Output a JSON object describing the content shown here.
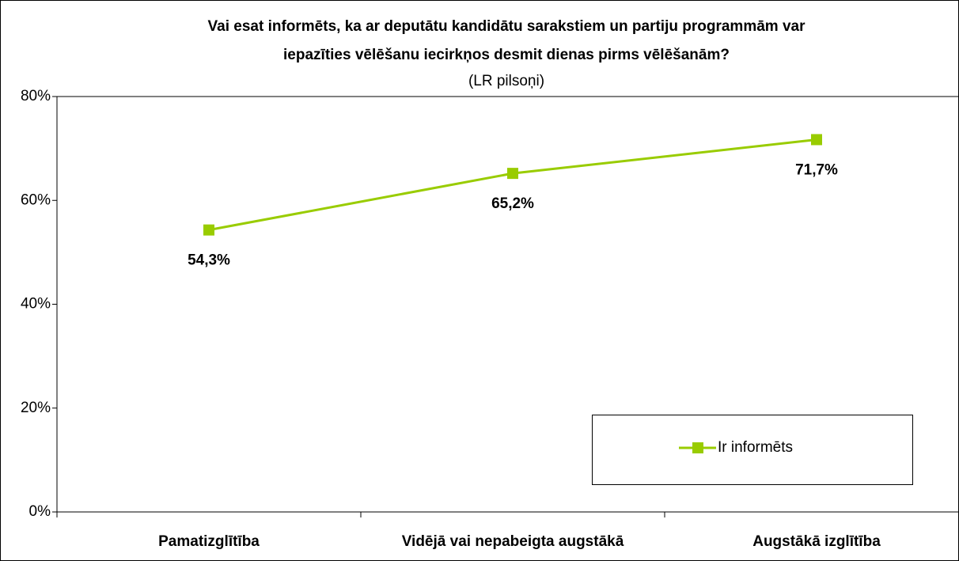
{
  "chart_data": {
    "type": "line",
    "title": [
      "Vai esat informēts, ka ar deputātu kandidātu sarakstiem un partiju programmām var",
      "iepazīties vēlēšanu iecirkņos desmit dienas pirms vēlēšanām?"
    ],
    "subtitle": "(LR pilsoņi)",
    "categories": [
      "Pamatizglītība",
      "Vidējā vai nepabeigta augstākā",
      "Augstākā izglītība"
    ],
    "series": [
      {
        "name": "Ir informēts",
        "color": "#99cc00",
        "values": [
          54.3,
          65.2,
          71.7
        ],
        "value_labels": [
          "54,3%",
          "65,2%",
          "71,7%"
        ]
      }
    ],
    "ylim": [
      0,
      80
    ],
    "yticks": [
      {
        "value": 0,
        "label": "0%"
      },
      {
        "value": 20,
        "label": "20%"
      },
      {
        "value": 40,
        "label": "40%"
      },
      {
        "value": 60,
        "label": "60%"
      },
      {
        "value": 80,
        "label": "80%"
      }
    ],
    "grid": false,
    "legend": "lower right"
  }
}
